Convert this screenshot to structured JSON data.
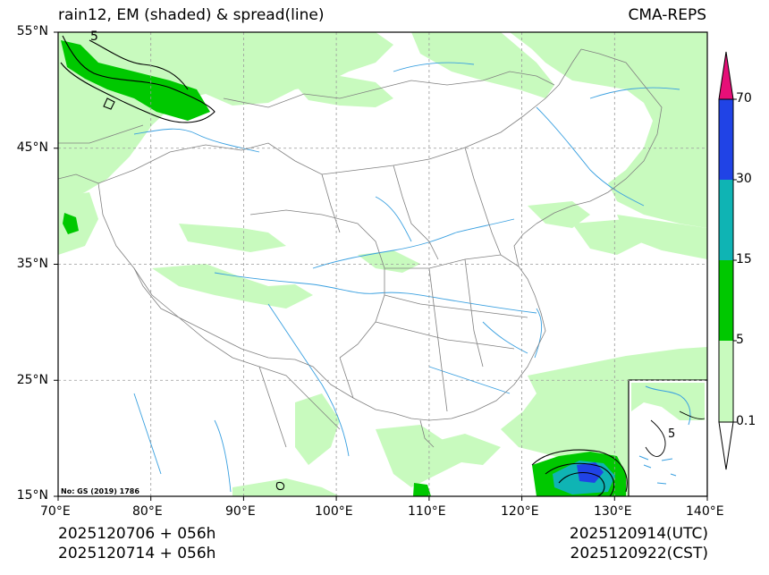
{
  "title_left": "rain12, EM (shaded) & spread(line)",
  "title_right": "CMA-REPS",
  "lat_labels": [
    "55°N",
    "45°N",
    "35°N",
    "25°N",
    "15°N"
  ],
  "lon_labels": [
    "70°E",
    "80°E",
    "90°E",
    "100°E",
    "110°E",
    "120°E",
    "130°E",
    "140°E"
  ],
  "colorbar": {
    "levels": [
      "0.1",
      "5",
      "15",
      "30",
      "70"
    ],
    "colors": [
      "#ffffff",
      "#c8fabe",
      "#00c800",
      "#0fb4b4",
      "#2043e6",
      "#e60f78"
    ]
  },
  "colors": {
    "light_green": "#c8fabe",
    "green": "#00c800",
    "cyan": "#0fb4b4",
    "blue": "#2043e6",
    "magenta": "#e60f78",
    "river": "#3aa0e0",
    "border": "#808080"
  },
  "map_note": "No: GS (2019) 1786",
  "inset_contour_label": "5",
  "corner_contour_label": "5",
  "footer": {
    "init_utc": "2025120706  +  056h",
    "init_cst": "2025120714  +  056h",
    "valid_utc": "2025120914(UTC)",
    "valid_cst": "2025120922(CST)"
  }
}
